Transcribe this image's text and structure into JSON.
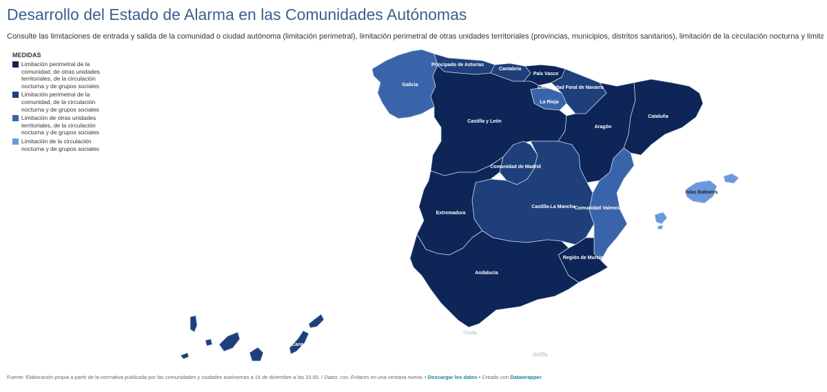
{
  "header": {
    "title": "Desarrollo del Estado de Alarma en las Comunidades Autónomas",
    "subtitle": "Consulte las limitaciones de entrada y salida de la comunidad o ciudad autónoma (limitación perimetral), limitación perimetral de otras unidades territoriales (provincias, municipios, distritos sanitarios), limitación de la circulación nocturna y limitación de grupos sociales"
  },
  "legend": {
    "title": "MEDIDAS",
    "items": [
      {
        "label": "Limitación perimetral de la comunidad, de otras unidades territoriales, de la circulación nocturna y de grupos sociales",
        "color": "#0d2657"
      },
      {
        "label": "Limitación perimetral de la comunidad, de la circulación nocturna y de grupos sociales",
        "color": "#1e3f7a"
      },
      {
        "label": "Limitación de otras unidades territoriales, de la circulación nocturna y de grupos sociales",
        "color": "#3a64aa"
      },
      {
        "label": "Limitación de la circulación nocturna y de grupos sociales",
        "color": "#6a98dc"
      }
    ]
  },
  "map": {
    "regions": {
      "galicia": {
        "label": "Galicia",
        "category": 4
      },
      "asturias": {
        "label": "Principado de Asturias",
        "category": 2
      },
      "cantabria": {
        "label": "Cantabria",
        "category": 2
      },
      "pais_vasco": {
        "label": "País Vasco",
        "category": 1
      },
      "navarra": {
        "label": "Comunidad Foral de Navarra",
        "category": 2
      },
      "la_rioja": {
        "label": "La Rioja",
        "category": 3
      },
      "castilla_leon": {
        "label": "Castilla y León",
        "category": 1
      },
      "aragon": {
        "label": "Aragón",
        "category": 1
      },
      "cataluna": {
        "label": "Cataluña",
        "category": 1
      },
      "madrid": {
        "label": "Comunidad de Madrid",
        "category": 2
      },
      "castilla_la_mancha": {
        "label": "Castilla-La Mancha",
        "category": 3
      },
      "valenciana": {
        "label": "Comunidad Valenciana",
        "category": 3
      },
      "extremadura": {
        "label": "Extremadura",
        "category": 1
      },
      "murcia": {
        "label": "Región de Murcia",
        "category": 1
      },
      "andalucia": {
        "label": "Andalucía",
        "category": 1
      },
      "baleares": {
        "label": "Islas Baleares",
        "category": 4
      },
      "canarias": {
        "label": "Canarias",
        "category": 2
      },
      "ceuta": {
        "label": "Ceuta",
        "category": 0
      },
      "melilla": {
        "label": "Melilla",
        "category": 0
      }
    }
  },
  "footer": {
    "source": "Fuente: Elaboración propia a partir de la normativa publicada por las comunidades y ciudades autónomas a 16 de diciembre a las 10.00.",
    "data_note": "/ Datos .csv. Enlaces en una ventana nueva.",
    "separator1": "•",
    "download_link": "Descargar los datos",
    "separator2": "• Creado con",
    "creator_link": "Datawrapper"
  }
}
